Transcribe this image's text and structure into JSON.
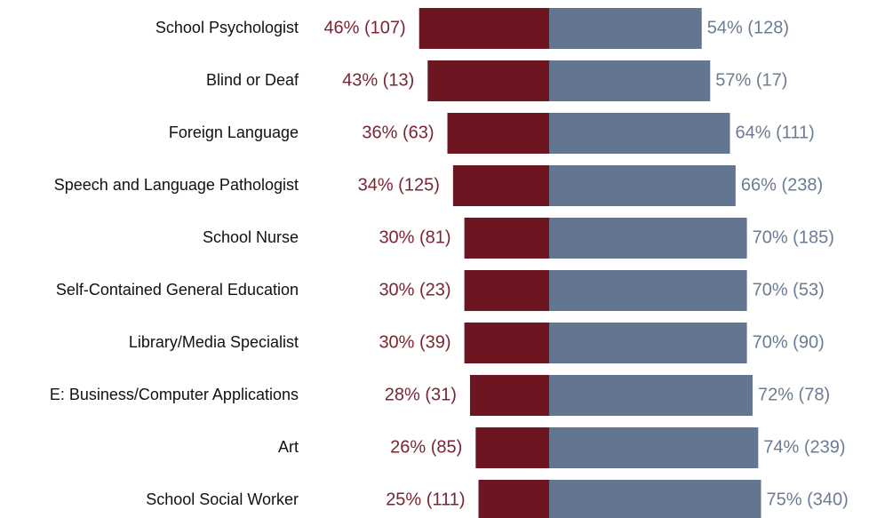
{
  "chart_data": {
    "type": "diverging_bar",
    "categories": [
      "School Psychologist",
      "Blind or Deaf",
      "Foreign Language",
      "Speech and Language Pathologist",
      "School Nurse",
      "Self-Contained General Education",
      "Library/Media Specialist",
      "E: Business/Computer Applications",
      "Art",
      "School Social Worker"
    ],
    "series": [
      {
        "color": "#6e1522",
        "values": [
          46,
          43,
          36,
          34,
          30,
          30,
          30,
          28,
          26,
          25
        ],
        "value_labels": [
          "46% (107)",
          "43% (13)",
          "36% (63)",
          "34% (125)",
          "30% (81)",
          "30% (23)",
          "30% (39)",
          "28% (31)",
          "26% (85)",
          "25% (111)"
        ]
      },
      {
        "color": "#647592",
        "values": [
          54,
          57,
          64,
          66,
          70,
          70,
          70,
          72,
          74,
          75
        ],
        "value_labels": [
          "54% (128)",
          "57% (17)",
          "64% (111)",
          "66% (238)",
          "70% (185)",
          "70% (53)",
          "70% (90)",
          "72% (78)",
          "74% (239)",
          "75% (340)"
        ]
      }
    ]
  }
}
